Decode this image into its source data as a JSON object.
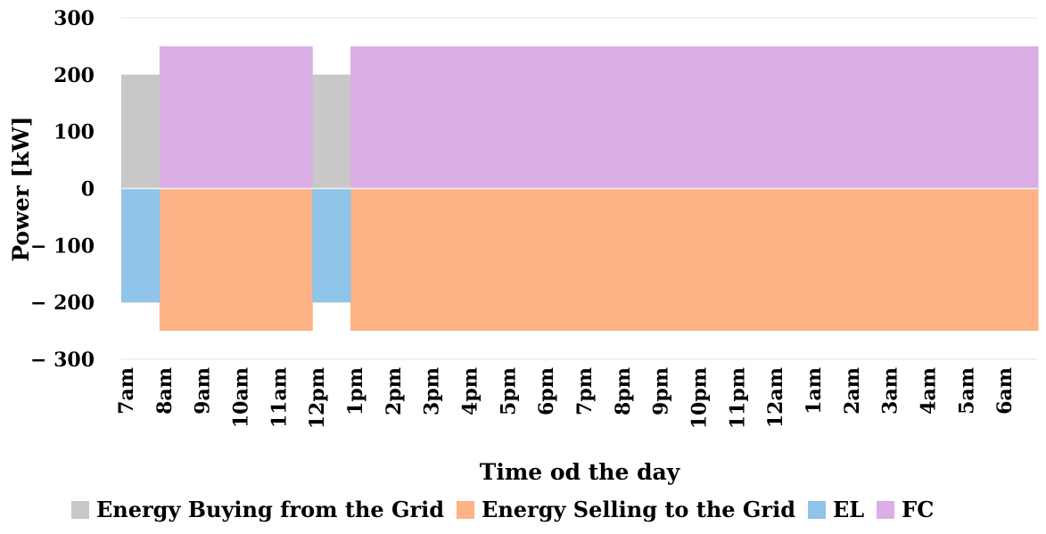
{
  "chart_data": {
    "type": "area",
    "title": "",
    "xlabel": "Time od the day",
    "ylabel": "Power [kW]",
    "ylim": [
      -300,
      300
    ],
    "yticks": [
      300,
      200,
      100,
      0,
      -100,
      -200,
      -300
    ],
    "ytick_labels": [
      "300",
      "200",
      "100",
      "0",
      "− 100",
      "− 200",
      "− 300"
    ],
    "categories": [
      "7am",
      "8am",
      "9am",
      "10am",
      "11am",
      "12pm",
      "1pm",
      "2pm",
      "3pm",
      "4pm",
      "5pm",
      "6pm",
      "7pm",
      "8pm",
      "9pm",
      "10pm",
      "11pm",
      "12am",
      "1am",
      "2am",
      "3am",
      "4am",
      "5am",
      "6am"
    ],
    "grid": true,
    "legend_position": "bottom",
    "series": [
      {
        "name": "Energy Buying from the Grid",
        "color": "#c8c8c8",
        "values": [
          200,
          0,
          0,
          0,
          0,
          200,
          0,
          0,
          0,
          0,
          0,
          0,
          0,
          0,
          0,
          0,
          0,
          0,
          0,
          0,
          0,
          0,
          0,
          0
        ]
      },
      {
        "name": "Energy Selling to the Grid",
        "color": "#fdb385",
        "values": [
          0,
          -250,
          -250,
          -250,
          -250,
          0,
          -250,
          -250,
          -250,
          -250,
          -250,
          -250,
          -250,
          -250,
          -250,
          -250,
          -250,
          -250,
          -250,
          -250,
          -250,
          -250,
          -250,
          -250
        ]
      },
      {
        "name": "EL",
        "color": "#90c4e8",
        "values": [
          -200,
          0,
          0,
          0,
          0,
          -200,
          0,
          0,
          0,
          0,
          0,
          0,
          0,
          0,
          0,
          0,
          0,
          0,
          0,
          0,
          0,
          0,
          0,
          0
        ]
      },
      {
        "name": "FC",
        "color": "#dbaee6",
        "values": [
          0,
          250,
          250,
          250,
          250,
          0,
          250,
          250,
          250,
          250,
          250,
          250,
          250,
          250,
          250,
          250,
          250,
          250,
          250,
          250,
          250,
          250,
          250,
          250
        ]
      }
    ]
  }
}
